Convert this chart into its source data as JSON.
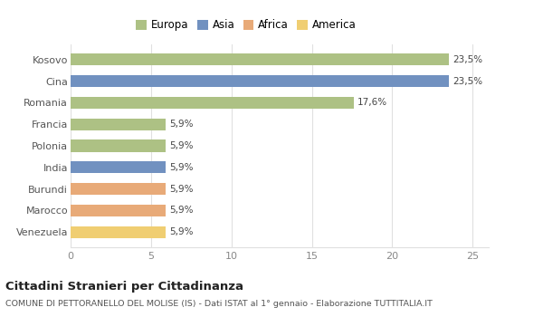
{
  "categories": [
    "Kosovo",
    "Cina",
    "Romania",
    "Francia",
    "Polonia",
    "India",
    "Burundi",
    "Marocco",
    "Venezuela"
  ],
  "values": [
    23.5,
    23.5,
    17.6,
    5.9,
    5.9,
    5.9,
    5.9,
    5.9,
    5.9
  ],
  "labels": [
    "23,5%",
    "23,5%",
    "17,6%",
    "5,9%",
    "5,9%",
    "5,9%",
    "5,9%",
    "5,9%",
    "5,9%"
  ],
  "colors": [
    "#adc184",
    "#7191c0",
    "#adc184",
    "#adc184",
    "#adc184",
    "#7191c0",
    "#e8aa78",
    "#e8aa78",
    "#f0ce72"
  ],
  "legend_labels": [
    "Europa",
    "Asia",
    "Africa",
    "America"
  ],
  "legend_colors": [
    "#adc184",
    "#7191c0",
    "#e8aa78",
    "#f0ce72"
  ],
  "xlim": [
    0,
    26
  ],
  "xticks": [
    0,
    5,
    10,
    15,
    20,
    25
  ],
  "title": "Cittadini Stranieri per Cittadinanza",
  "subtitle": "COMUNE DI PETTORANELLO DEL MOLISE (IS) - Dati ISTAT al 1° gennaio - Elaborazione TUTTITALIA.IT",
  "bg_color": "#ffffff",
  "grid_color": "#e0e0e0"
}
